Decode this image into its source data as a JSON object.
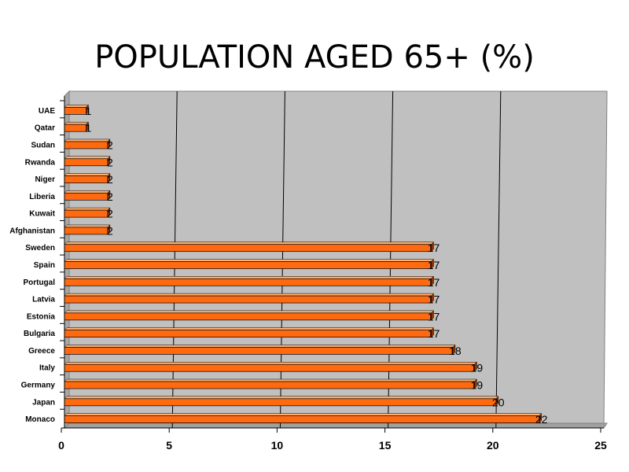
{
  "chart_data": {
    "type": "bar",
    "orientation": "horizontal",
    "title": "POPULATION AGED 65+ (%)",
    "categories": [
      "UAE",
      "Qatar",
      "Sudan",
      "Rwanda",
      "Niger",
      "Liberia",
      "Kuwait",
      "Afghanistan",
      "Sweden",
      "Spain",
      "Portugal",
      "Latvia",
      "Estonia",
      "Bulgaria",
      "Greece",
      "Italy",
      "Germany",
      "Japan",
      "Monaco"
    ],
    "values": [
      1,
      1,
      2,
      2,
      2,
      2,
      2,
      2,
      17,
      17,
      17,
      17,
      17,
      17,
      18,
      19,
      19,
      20,
      22
    ],
    "xlim": [
      0,
      25
    ],
    "xticks": [
      0,
      5,
      10,
      15,
      20,
      25
    ],
    "xlabel": "",
    "ylabel": "",
    "grid": true,
    "legend": "none",
    "colors": {
      "bar_front": "#FF6A10",
      "bar_top": "#FFB070",
      "bar_shadow": "#8B3000",
      "plot_bg": "#C0C0C0",
      "floor": "#A0A0A0"
    }
  }
}
